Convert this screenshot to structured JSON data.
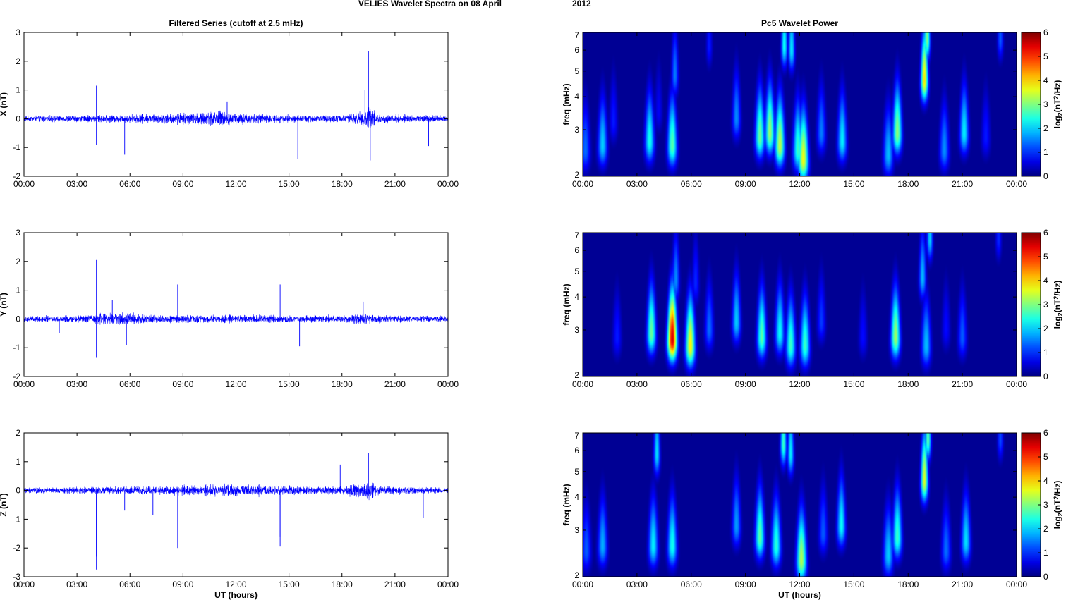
{
  "figure": {
    "suptitle_left": "VELIES Wavelet Spectra on 08 April",
    "suptitle_right": "2012"
  },
  "chart_data": [
    {
      "type": "line",
      "title": "Filtered Series (cutoff at 2.5 mHz)",
      "ylabel": "X (nT)",
      "xlabel": "",
      "xlim": [
        0,
        24
      ],
      "ylim": [
        -2,
        3
      ],
      "xtick_labels": [
        "00:00",
        "03:00",
        "06:00",
        "09:00",
        "12:00",
        "15:00",
        "18:00",
        "21:00",
        "00:00"
      ],
      "ytick_values": [
        -2,
        -1,
        0,
        1,
        2,
        3
      ],
      "line_color": "#0000ff",
      "noise_amplitude_profile": [
        [
          0,
          0.12
        ],
        [
          4,
          0.14
        ],
        [
          6,
          0.18
        ],
        [
          9,
          0.22
        ],
        [
          11,
          0.32
        ],
        [
          12,
          0.26
        ],
        [
          15,
          0.15
        ],
        [
          18,
          0.15
        ],
        [
          19.2,
          0.35
        ],
        [
          19.6,
          0.55
        ],
        [
          20,
          0.18
        ],
        [
          24,
          0.14
        ]
      ],
      "spikes": [
        [
          4.1,
          1.15
        ],
        [
          4.1,
          -0.9
        ],
        [
          5.7,
          -1.25
        ],
        [
          15.5,
          -1.4
        ],
        [
          19.3,
          1.0
        ],
        [
          19.5,
          2.35
        ],
        [
          19.6,
          -1.45
        ],
        [
          22.9,
          -0.95
        ],
        [
          11.5,
          0.6
        ],
        [
          12.0,
          -0.55
        ]
      ]
    },
    {
      "type": "line",
      "title": "",
      "ylabel": "Y (nT)",
      "xlabel": "",
      "xlim": [
        0,
        24
      ],
      "ylim": [
        -2,
        3
      ],
      "xtick_labels": [
        "00:00",
        "03:00",
        "06:00",
        "09:00",
        "12:00",
        "15:00",
        "18:00",
        "21:00",
        "00:00"
      ],
      "ytick_values": [
        -2,
        -1,
        0,
        1,
        2,
        3
      ],
      "line_color": "#0000ff",
      "noise_amplitude_profile": [
        [
          0,
          0.12
        ],
        [
          3.5,
          0.14
        ],
        [
          4.5,
          0.25
        ],
        [
          5.5,
          0.3
        ],
        [
          7,
          0.16
        ],
        [
          12,
          0.16
        ],
        [
          18,
          0.14
        ],
        [
          19.3,
          0.28
        ],
        [
          20,
          0.14
        ],
        [
          24,
          0.12
        ]
      ],
      "spikes": [
        [
          4.1,
          2.05
        ],
        [
          4.1,
          -1.35
        ],
        [
          5.0,
          0.65
        ],
        [
          5.8,
          -0.9
        ],
        [
          8.7,
          1.2
        ],
        [
          14.5,
          1.2
        ],
        [
          15.6,
          -0.95
        ],
        [
          19.2,
          0.6
        ],
        [
          2.0,
          -0.5
        ]
      ]
    },
    {
      "type": "line",
      "title": "",
      "ylabel": "Z (nT)",
      "xlabel": "UT (hours)",
      "xlim": [
        0,
        24
      ],
      "ylim": [
        -3,
        2
      ],
      "xtick_labels": [
        "00:00",
        "03:00",
        "06:00",
        "09:00",
        "12:00",
        "15:00",
        "18:00",
        "21:00",
        "00:00"
      ],
      "ytick_values": [
        -3,
        -2,
        -1,
        0,
        1,
        2
      ],
      "line_color": "#0000ff",
      "noise_amplitude_profile": [
        [
          0,
          0.12
        ],
        [
          4,
          0.14
        ],
        [
          8,
          0.18
        ],
        [
          11.5,
          0.26
        ],
        [
          13,
          0.2
        ],
        [
          18,
          0.16
        ],
        [
          19.5,
          0.38
        ],
        [
          20.2,
          0.16
        ],
        [
          24,
          0.12
        ]
      ],
      "spikes": [
        [
          4.1,
          -2.75
        ],
        [
          4.1,
          -2.3
        ],
        [
          5.7,
          -0.7
        ],
        [
          7.3,
          -0.85
        ],
        [
          8.7,
          -2.0
        ],
        [
          14.5,
          -1.95
        ],
        [
          17.9,
          0.9
        ],
        [
          19.5,
          1.3
        ],
        [
          22.6,
          -0.95
        ],
        [
          14.5,
          -1.6
        ]
      ]
    },
    {
      "type": "heatmap",
      "title": "Pc5 Wavelet Power",
      "ylabel": "freq (mHz)",
      "xlabel": "",
      "xlim": [
        0,
        24
      ],
      "ylim": [
        2,
        7
      ],
      "yscale": "log",
      "ytick_values": [
        2,
        3,
        4,
        5,
        6,
        7
      ],
      "xtick_labels": [
        "00:00",
        "03:00",
        "06:00",
        "09:00",
        "12:00",
        "15:00",
        "18:00",
        "21:00",
        "00:00"
      ],
      "colorbar_label": "log2(nT^2/Hz)",
      "clim": [
        0,
        6
      ],
      "colorbar_ticks": [
        0,
        1,
        2,
        3,
        4,
        5,
        6
      ],
      "features": [
        [
          0.15,
          2.5,
          1.4
        ],
        [
          1.1,
          2.6,
          2.0
        ],
        [
          1.7,
          3.2,
          0.9
        ],
        [
          3.7,
          2.7,
          2.4
        ],
        [
          4.2,
          3.5,
          0.7
        ],
        [
          4.95,
          2.6,
          2.8
        ],
        [
          5.1,
          4.8,
          1.5
        ],
        [
          7.0,
          6.2,
          0.9
        ],
        [
          8.5,
          3.3,
          1.6
        ],
        [
          9.8,
          2.8,
          2.9
        ],
        [
          10.35,
          2.9,
          3.2
        ],
        [
          10.9,
          2.6,
          3.4
        ],
        [
          11.15,
          6.2,
          2.4
        ],
        [
          11.55,
          6.0,
          2.2
        ],
        [
          11.9,
          2.5,
          2.6
        ],
        [
          12.2,
          2.3,
          3.7
        ],
        [
          13.2,
          2.9,
          1.5
        ],
        [
          14.35,
          2.7,
          2.2
        ],
        [
          16.9,
          2.4,
          1.9
        ],
        [
          17.4,
          2.9,
          3.1
        ],
        [
          18.9,
          4.6,
          3.9
        ],
        [
          19.05,
          6.6,
          3.0
        ],
        [
          20.0,
          2.5,
          1.6
        ],
        [
          21.1,
          2.9,
          2.2
        ],
        [
          22.3,
          2.8,
          0.9
        ],
        [
          23.1,
          6.6,
          1.3
        ]
      ]
    },
    {
      "type": "heatmap",
      "title": "",
      "ylabel": "freq (mHz)",
      "xlabel": "",
      "xlim": [
        0,
        24
      ],
      "ylim": [
        2,
        7
      ],
      "yscale": "log",
      "ytick_values": [
        2,
        3,
        4,
        5,
        6,
        7
      ],
      "xtick_labels": [
        "00:00",
        "03:00",
        "06:00",
        "09:00",
        "12:00",
        "15:00",
        "18:00",
        "21:00",
        "00:00"
      ],
      "colorbar_label": "log2(nT^2/Hz)",
      "clim": [
        0,
        6
      ],
      "colorbar_ticks": [
        0,
        1,
        2,
        3,
        4,
        5,
        6
      ],
      "features": [
        [
          1.9,
          2.8,
          0.9
        ],
        [
          3.8,
          2.9,
          2.9
        ],
        [
          4.95,
          2.75,
          5.6
        ],
        [
          5.15,
          4.6,
          1.6
        ],
        [
          5.95,
          2.6,
          3.8
        ],
        [
          6.25,
          4.5,
          1.0
        ],
        [
          7.0,
          3.0,
          1.4
        ],
        [
          8.5,
          3.2,
          2.0
        ],
        [
          9.9,
          2.8,
          2.8
        ],
        [
          10.9,
          2.9,
          2.3
        ],
        [
          11.5,
          2.6,
          2.6
        ],
        [
          12.3,
          2.6,
          2.6
        ],
        [
          13.2,
          3.2,
          1.1
        ],
        [
          15.5,
          2.8,
          0.8
        ],
        [
          17.3,
          2.8,
          3.2
        ],
        [
          18.8,
          4.7,
          1.9
        ],
        [
          19.0,
          2.6,
          1.9
        ],
        [
          19.2,
          6.6,
          2.0
        ],
        [
          20.1,
          3.0,
          0.8
        ],
        [
          21.0,
          2.8,
          1.3
        ],
        [
          23.0,
          6.6,
          1.0
        ]
      ]
    },
    {
      "type": "heatmap",
      "title": "",
      "ylabel": "freq (mHz)",
      "xlabel": "UT (hours)",
      "xlim": [
        0,
        24
      ],
      "ylim": [
        2,
        7
      ],
      "yscale": "log",
      "ytick_values": [
        2,
        3,
        4,
        5,
        6,
        7
      ],
      "xtick_labels": [
        "00:00",
        "03:00",
        "06:00",
        "09:00",
        "12:00",
        "15:00",
        "18:00",
        "21:00",
        "00:00"
      ],
      "colorbar_label": "log2(nT^2/Hz)",
      "clim": [
        0,
        6
      ],
      "colorbar_ticks": [
        0,
        1,
        2,
        3,
        4,
        5,
        6
      ],
      "features": [
        [
          0.2,
          2.5,
          1.3
        ],
        [
          1.1,
          2.6,
          1.8
        ],
        [
          3.9,
          2.6,
          2.2
        ],
        [
          4.1,
          5.8,
          2.1
        ],
        [
          4.95,
          2.6,
          2.4
        ],
        [
          8.5,
          3.1,
          1.7
        ],
        [
          9.8,
          2.8,
          2.8
        ],
        [
          10.7,
          2.6,
          2.5
        ],
        [
          11.1,
          6.3,
          2.6
        ],
        [
          11.5,
          5.8,
          2.2
        ],
        [
          12.1,
          2.3,
          3.3
        ],
        [
          13.3,
          2.9,
          1.3
        ],
        [
          14.3,
          3.1,
          2.3
        ],
        [
          16.9,
          2.4,
          2.0
        ],
        [
          17.4,
          2.8,
          2.6
        ],
        [
          18.9,
          4.6,
          3.6
        ],
        [
          19.1,
          6.6,
          2.8
        ],
        [
          20.1,
          2.5,
          1.4
        ],
        [
          21.2,
          2.7,
          2.1
        ],
        [
          23.1,
          6.6,
          1.2
        ]
      ]
    }
  ]
}
